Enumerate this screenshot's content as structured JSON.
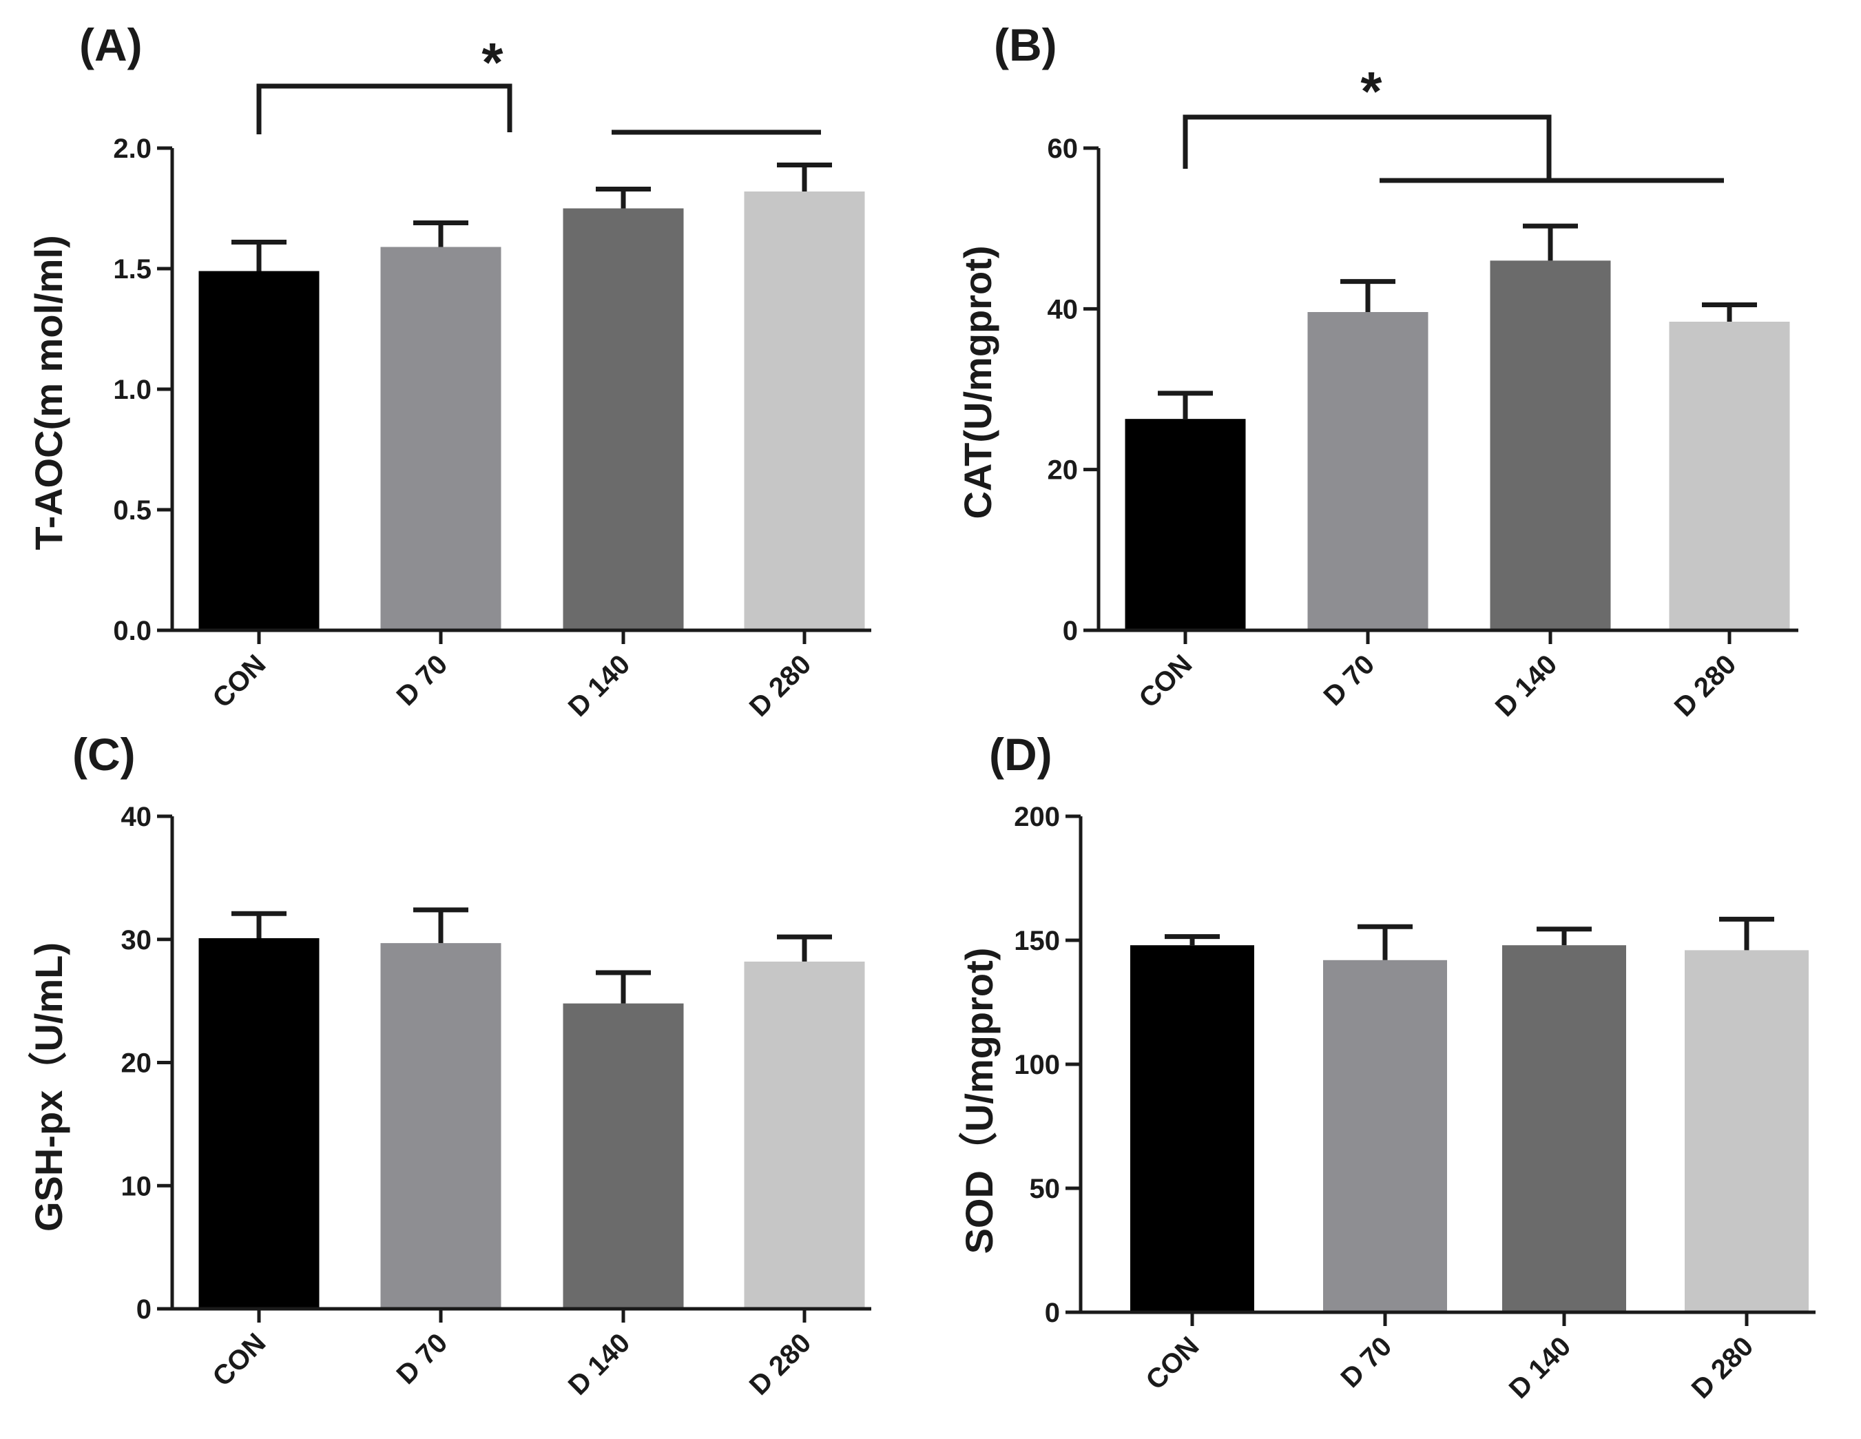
{
  "colors": {
    "CON": "#000000",
    "D 70": "#8e8e92",
    "D 140": "#6b6b6b",
    "D 280": "#c6c6c6",
    "axis": "#1a1a1a"
  },
  "chart_data": [
    {
      "type": "bar",
      "panel": "(A)",
      "ylabel": "T-AOC(m mol/ml)",
      "categories": [
        "CON",
        "D 70",
        "D 140",
        "D 280"
      ],
      "values": [
        1.49,
        1.59,
        1.75,
        1.82
      ],
      "errors": [
        0.12,
        0.1,
        0.08,
        0.11
      ],
      "ylim": [
        0,
        2.0
      ],
      "yticks": [
        0.0,
        0.5,
        1.0,
        1.5,
        2.0
      ],
      "ytick_labels": [
        "0.0",
        "0.5",
        "1.0",
        "1.5",
        "2.0"
      ],
      "significance": {
        "label": "*",
        "from": "CON",
        "to": [
          "D 140",
          "D 280"
        ]
      }
    },
    {
      "type": "bar",
      "panel": "(B)",
      "ylabel": "CAT(U/mgprot)",
      "categories": [
        "CON",
        "D 70",
        "D 140",
        "D 280"
      ],
      "values": [
        26.3,
        39.6,
        46.0,
        38.4
      ],
      "errors": [
        3.2,
        3.8,
        4.3,
        2.1
      ],
      "ylim": [
        0,
        60
      ],
      "yticks": [
        0,
        20,
        40,
        60
      ],
      "ytick_labels": [
        "0",
        "20",
        "40",
        "60"
      ],
      "significance": {
        "label": "*",
        "from": "CON",
        "to": [
          "D 70",
          "D 280"
        ]
      }
    },
    {
      "type": "bar",
      "panel": "(C)",
      "ylabel": "GSH-px（U/mL)",
      "categories": [
        "CON",
        "D 70",
        "D 140",
        "D 280"
      ],
      "values": [
        30.1,
        29.7,
        24.8,
        28.2
      ],
      "errors": [
        2.0,
        2.7,
        2.5,
        2.0
      ],
      "ylim": [
        0,
        40
      ],
      "yticks": [
        0,
        10,
        20,
        30,
        40
      ],
      "ytick_labels": [
        "0",
        "10",
        "20",
        "30",
        "40"
      ]
    },
    {
      "type": "bar",
      "panel": "(D)",
      "ylabel": "SOD（U/mgprot)",
      "categories": [
        "CON",
        "D 70",
        "D 140",
        "D 280"
      ],
      "values": [
        148,
        142,
        148,
        146
      ],
      "errors": [
        3.5,
        13.5,
        6.5,
        12.5
      ],
      "ylim": [
        0,
        200
      ],
      "yticks": [
        0,
        50,
        100,
        150,
        200
      ],
      "ytick_labels": [
        "0",
        "50",
        "100",
        "150",
        "200"
      ]
    }
  ]
}
